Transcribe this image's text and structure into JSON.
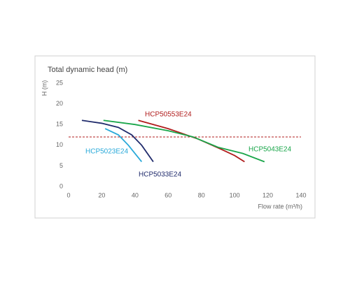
{
  "chart_data": {
    "type": "line",
    "title": "Total dynamic head (m)",
    "y_label": "H (m)",
    "x_label": "Flow rate (m³/h)",
    "xlim": [
      0,
      140
    ],
    "xticks": [
      0,
      20,
      40,
      60,
      80,
      100,
      120,
      140
    ],
    "ylim": [
      0,
      25
    ],
    "yticks": [
      0,
      5,
      10,
      15,
      20,
      25
    ],
    "grid": false,
    "reference_line": {
      "value": 12,
      "color": "#b01c1c"
    },
    "series": [
      {
        "name": "HCP5033E24",
        "color": "#1f2a6b",
        "x": [
          8,
          20,
          30,
          38,
          44,
          51
        ],
        "values": [
          16,
          15.3,
          14.3,
          12.5,
          10,
          6
        ]
      },
      {
        "name": "HCP5023E24",
        "color": "#29a9d9",
        "x": [
          22,
          30,
          36,
          40,
          44
        ],
        "values": [
          14,
          12.5,
          10,
          8,
          6
        ]
      },
      {
        "name": "HCP50553E24",
        "color": "#b01c1c",
        "x": [
          42,
          60,
          78,
          92,
          100,
          106
        ],
        "values": [
          16,
          14,
          11.5,
          9,
          7.5,
          6
        ]
      },
      {
        "name": "HCP5043E24",
        "color": "#1aa64a",
        "x": [
          21,
          40,
          60,
          75,
          90,
          105,
          118
        ],
        "values": [
          16,
          15,
          13.5,
          12,
          9.5,
          8,
          6
        ]
      }
    ]
  }
}
